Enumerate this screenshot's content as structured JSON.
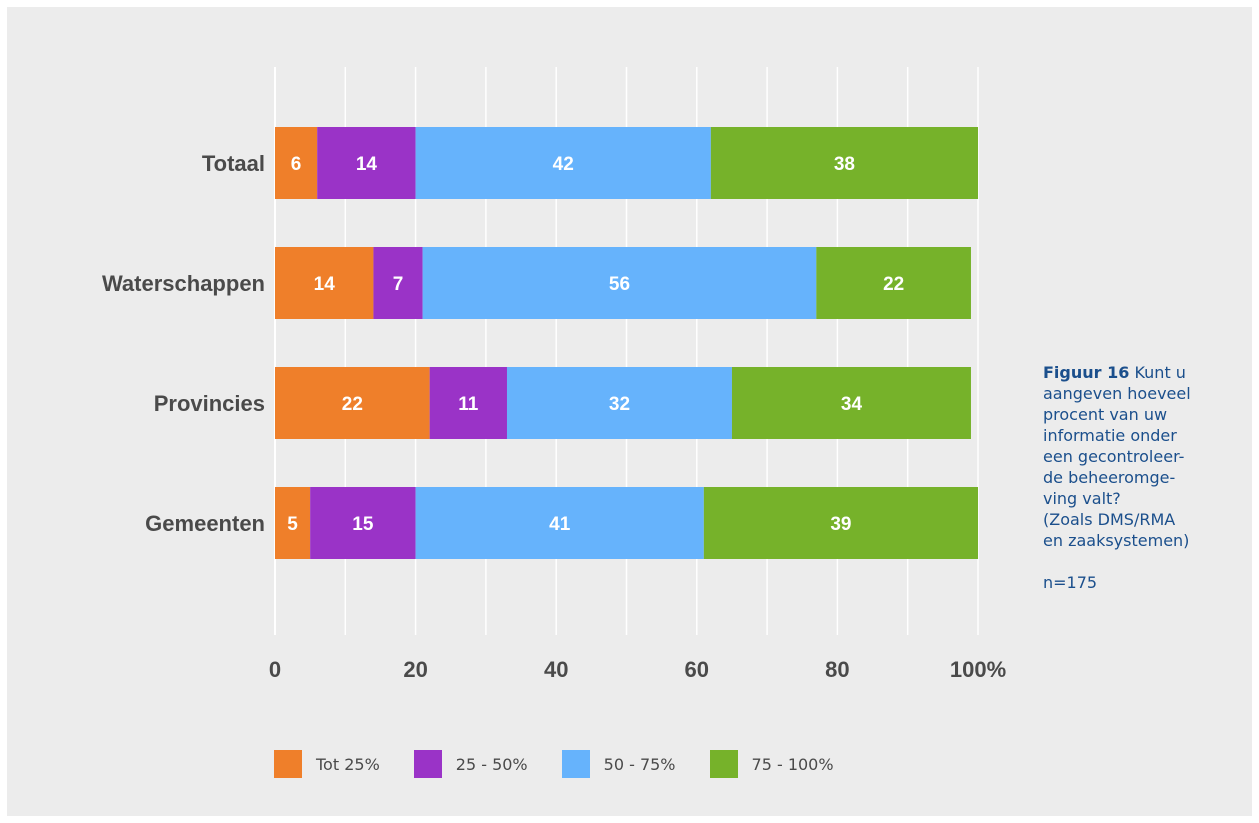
{
  "chart_data": {
    "type": "bar",
    "orientation": "horizontal",
    "stacked": true,
    "categories": [
      "Totaal",
      "Waterschappen",
      "Provincies",
      "Gemeenten"
    ],
    "series": [
      {
        "name": "Tot 25%",
        "color": "#ef7f2a",
        "values": [
          6,
          14,
          22,
          5
        ]
      },
      {
        "name": "25 - 50%",
        "color": "#9a33c7",
        "values": [
          14,
          7,
          11,
          15
        ]
      },
      {
        "name": "50 - 75%",
        "color": "#66b3fc",
        "values": [
          42,
          56,
          32,
          41
        ]
      },
      {
        "name": "75 - 100%",
        "color": "#76b22a",
        "values": [
          38,
          22,
          34,
          39
        ]
      }
    ],
    "xlim": [
      0,
      100
    ],
    "xticks": [
      0,
      20,
      40,
      60,
      80,
      100
    ],
    "xtick_labels": [
      "0",
      "20",
      "40",
      "60",
      "80",
      "100%"
    ],
    "grid": true,
    "legend_position": "bottom"
  },
  "caption": {
    "title": "Figuur 16",
    "text": " Kunt u\naangeven hoeveel\nprocent van uw\ninformatie onder\neen gecontroleer-\nde beheeromge-\nving valt?\n(Zoals DMS/RMA\nen zaaksystemen)",
    "n": "n=175"
  }
}
